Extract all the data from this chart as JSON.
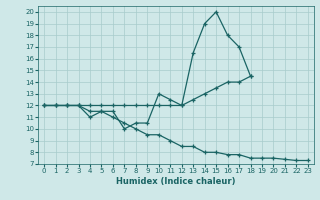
{
  "xlabel": "Humidex (Indice chaleur)",
  "background_color": "#cfe8e8",
  "grid_color": "#a8cccc",
  "line_color": "#1a6464",
  "xlim": [
    -0.5,
    23.5
  ],
  "ylim": [
    7,
    20.5
  ],
  "xticks": [
    0,
    1,
    2,
    3,
    4,
    5,
    6,
    7,
    8,
    9,
    10,
    11,
    12,
    13,
    14,
    15,
    16,
    17,
    18,
    19,
    20,
    21,
    22,
    23
  ],
  "yticks": [
    7,
    8,
    9,
    10,
    11,
    12,
    13,
    14,
    15,
    16,
    17,
    18,
    19,
    20
  ],
  "series": [
    {
      "x": [
        0,
        1,
        2,
        3,
        4,
        5,
        6,
        7,
        8,
        9,
        10,
        11,
        12,
        13,
        14,
        15,
        16,
        17,
        18
      ],
      "y": [
        12,
        12,
        12,
        12,
        11,
        11.5,
        11.5,
        10,
        10.5,
        10.5,
        13,
        12.5,
        12,
        16.5,
        19,
        20,
        18,
        17,
        14.5
      ]
    },
    {
      "x": [
        0,
        1,
        2,
        3,
        4,
        5,
        6,
        7,
        8,
        9,
        10,
        11,
        12,
        13,
        14,
        15,
        16,
        17,
        18
      ],
      "y": [
        12,
        12,
        12,
        12,
        12,
        12,
        12,
        12,
        12,
        12,
        12,
        12,
        12,
        12.5,
        13,
        13.5,
        14,
        14,
        14.5
      ]
    },
    {
      "x": [
        0,
        1,
        2,
        3,
        4,
        5,
        6,
        7,
        8,
        9,
        10,
        11,
        12,
        13,
        14,
        15,
        16,
        17,
        18,
        19,
        20,
        21,
        22,
        23
      ],
      "y": [
        12,
        12,
        12,
        12,
        11.5,
        11.5,
        11,
        10.5,
        10,
        9.5,
        9.5,
        9,
        8.5,
        8.5,
        8,
        8,
        7.8,
        7.8,
        7.5,
        7.5,
        7.5,
        7.4,
        7.3,
        7.3
      ]
    }
  ]
}
